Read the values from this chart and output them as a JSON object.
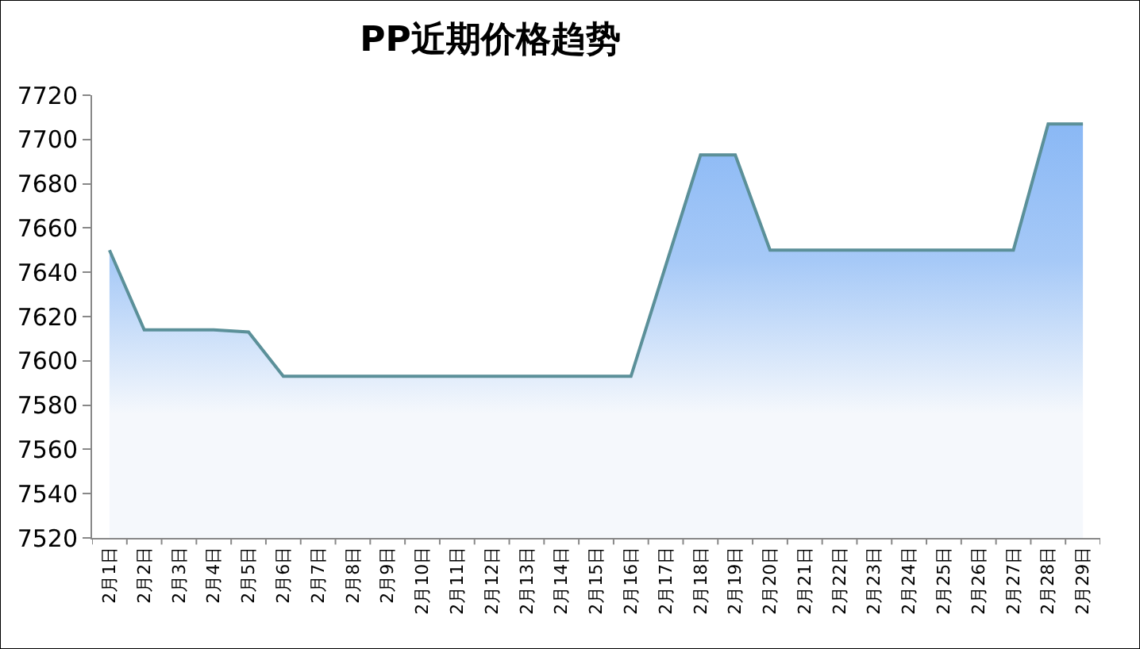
{
  "chart_data": {
    "type": "area",
    "title": "PP近期价格趋势",
    "categories": [
      "2月1日",
      "2月2日",
      "2月3日",
      "2月4日",
      "2月5日",
      "2月6日",
      "2月7日",
      "2月8日",
      "2月9日",
      "2月10日",
      "2月11日",
      "2月12日",
      "2月13日",
      "2月14日",
      "2月15日",
      "2月16日",
      "2月17日",
      "2月18日",
      "2月19日",
      "2月20日",
      "2月21日",
      "2月22日",
      "2月23日",
      "2月24日",
      "2月25日",
      "2月26日",
      "2月27日",
      "2月28日",
      "2月29日"
    ],
    "series": [
      {
        "color": "#5b9099",
        "values": [
          7650,
          7614,
          7614,
          7614,
          7613,
          7593,
          7593,
          7593,
          7593,
          7593,
          7593,
          7593,
          7593,
          7593,
          7593,
          7593,
          7643,
          7693,
          7693,
          7650,
          7650,
          7650,
          7650,
          7650,
          7650,
          7650,
          7650,
          7707,
          7707
        ]
      }
    ],
    "ylim": [
      7520,
      7720
    ],
    "yticks": [
      7520,
      7540,
      7560,
      7580,
      7600,
      7620,
      7640,
      7660,
      7680,
      7700,
      7720
    ],
    "marker": "none",
    "line_style": "solid"
  }
}
